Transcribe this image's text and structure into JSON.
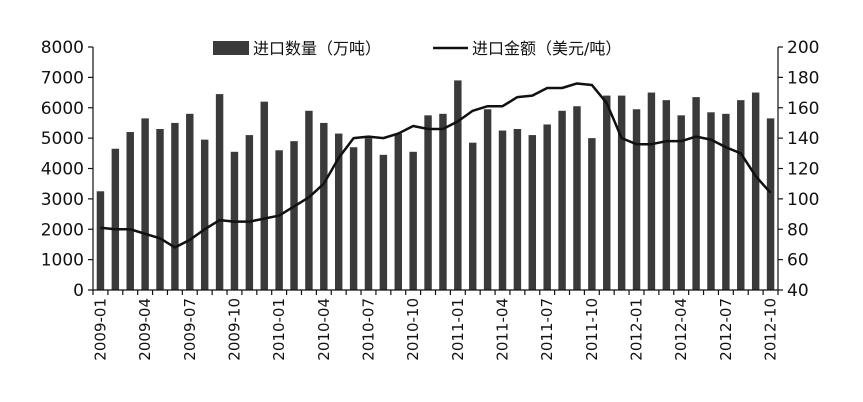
{
  "chart_data": {
    "type": "bar+line",
    "x": [
      "2009-01",
      "2009-02",
      "2009-03",
      "2009-04",
      "2009-05",
      "2009-06",
      "2009-07",
      "2009-08",
      "2009-09",
      "2009-10",
      "2009-11",
      "2009-12",
      "2010-01",
      "2010-02",
      "2010-03",
      "2010-04",
      "2010-05",
      "2010-06",
      "2010-07",
      "2010-08",
      "2010-09",
      "2010-10",
      "2010-11",
      "2010-12",
      "2011-01",
      "2011-02",
      "2011-03",
      "2011-04",
      "2011-05",
      "2011-06",
      "2011-07",
      "2011-08",
      "2011-09",
      "2011-10",
      "2011-11",
      "2011-12",
      "2012-01",
      "2012-02",
      "2012-03",
      "2012-04",
      "2012-05",
      "2012-06",
      "2012-07",
      "2012-08",
      "2012-09",
      "2012-10"
    ],
    "x_tick_labels": [
      "2009-01",
      "2009-04",
      "2009-07",
      "2009-10",
      "2010-01",
      "2010-04",
      "2010-07",
      "2010-10",
      "2011-01",
      "2011-04",
      "2011-07",
      "2011-10",
      "2012-01",
      "2012-04",
      "2012-07",
      "2012-10"
    ],
    "series": [
      {
        "name": "进口数量（万吨）",
        "type": "bar",
        "axis": "left",
        "color": "#3a3a3a",
        "values": [
          3250,
          4650,
          5200,
          5650,
          5300,
          5500,
          5800,
          4950,
          6450,
          4550,
          5100,
          6200,
          4600,
          4900,
          5900,
          5500,
          5150,
          4700,
          5000,
          4450,
          5150,
          4550,
          5750,
          5800,
          6900,
          4850,
          5950,
          5250,
          5300,
          5100,
          5450,
          5900,
          6050,
          5000,
          6400,
          6400,
          5950,
          6500,
          6250,
          5750,
          6350,
          5850,
          5800,
          6250,
          6500,
          5650
        ]
      },
      {
        "name": "进口金额（美元/吨）",
        "type": "line",
        "axis": "right",
        "color": "#111111",
        "values": [
          81,
          80,
          80,
          77,
          74,
          68,
          73,
          80,
          86,
          85,
          85,
          87,
          89,
          95,
          101,
          110,
          127,
          140,
          141,
          140,
          143,
          148,
          146,
          146,
          151,
          158,
          161,
          161,
          167,
          168,
          173,
          173,
          176,
          175,
          163,
          140,
          136,
          136,
          138,
          138,
          141,
          139,
          134,
          130,
          115,
          104
        ]
      }
    ],
    "y_left": {
      "min": 0,
      "max": 8000,
      "ticks": [
        0,
        1000,
        2000,
        3000,
        4000,
        5000,
        6000,
        7000,
        8000
      ]
    },
    "y_right": {
      "min": 40,
      "max": 200,
      "ticks": [
        40,
        60,
        80,
        100,
        120,
        140,
        160,
        180,
        200
      ]
    },
    "legend": {
      "placement": "top-center"
    },
    "grid": false
  }
}
